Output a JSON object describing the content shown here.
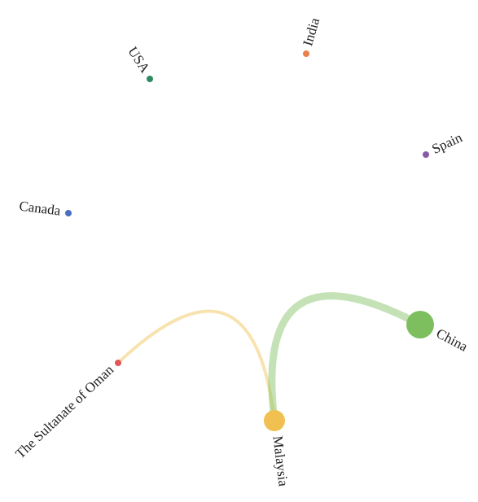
{
  "chart_data": {
    "type": "graph",
    "layout": "circular",
    "nodes": [
      {
        "name": "India",
        "color": "#e8804a",
        "value": 4
      },
      {
        "name": "Spain",
        "color": "#8a59a8",
        "value": 4
      },
      {
        "name": "China",
        "color": "#7dbf5e",
        "value": 17
      },
      {
        "name": "Malaysia",
        "color": "#f0c050",
        "value": 13
      },
      {
        "name": "The Sultanate of Oman",
        "color": "#e05858",
        "value": 4
      },
      {
        "name": "Canada",
        "color": "#4a6fbf",
        "value": 4
      },
      {
        "name": "USA",
        "color": "#2e8b5f",
        "value": 4
      }
    ],
    "links": [
      {
        "source": 4,
        "target": 3,
        "color": "#f0c050",
        "value": 4
      },
      {
        "source": 3,
        "target": 2,
        "color": "#7dbf5e",
        "value": 9
      }
    ]
  }
}
